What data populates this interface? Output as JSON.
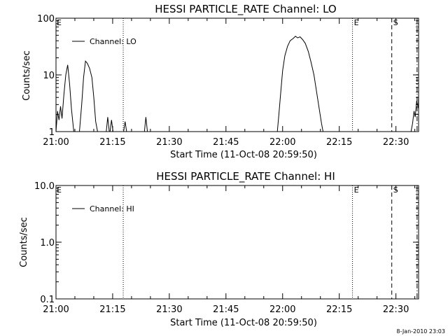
{
  "chart_data": [
    {
      "type": "line",
      "title": "HESSI PARTICLE_RATE Channel: LO",
      "xlabel": "Start Time (11-Oct-08 20:59:50)",
      "ylabel": "Counts/sec",
      "yscale": "log",
      "xlim": [
        "21:00",
        "22:36"
      ],
      "ylim": [
        1,
        100
      ],
      "x_tick_labels": [
        "21:00",
        "21:15",
        "21:30",
        "21:45",
        "22:00",
        "22:15",
        "22:30"
      ],
      "y_tick_labels": [
        "1",
        "10",
        "100"
      ],
      "legend": "top-left",
      "series": [
        {
          "name": "Channel: LO",
          "segments": [
            [
              [
                "21:00",
                1
              ],
              [
                "21:00.4",
                2.3
              ],
              [
                "21:00.8",
                1.6
              ],
              [
                "21:01.2",
                2.8
              ],
              [
                "21:01.6",
                1.7
              ],
              [
                "21:02.1",
                4.5
              ],
              [
                "21:02.6",
                10
              ],
              [
                "21:03.1",
                15
              ],
              [
                "21:03.6",
                7
              ],
              [
                "21:04.1",
                2.5
              ],
              [
                "21:04.7",
                1
              ]
            ],
            [
              [
                "21:06.2",
                1
              ],
              [
                "21:06.8",
                3
              ],
              [
                "21:07.3",
                9
              ],
              [
                "21:07.8",
                17.5
              ],
              [
                "21:08.3",
                16
              ],
              [
                "21:08.9",
                13
              ],
              [
                "21:09.5",
                9
              ],
              [
                "21:10.0",
                4
              ],
              [
                "21:10.5",
                1.5
              ],
              [
                "21:11.0",
                1
              ]
            ],
            [
              [
                "21:13.3",
                1
              ],
              [
                "21:13.7",
                1.8
              ],
              [
                "21:14.1",
                1
              ]
            ],
            [
              [
                "21:14.3",
                1
              ],
              [
                "21:14.7",
                1.6
              ],
              [
                "21:15.1",
                1
              ]
            ],
            [
              [
                "21:17.9",
                1
              ],
              [
                "21:18.3",
                1.5
              ],
              [
                "21:18.7",
                1
              ]
            ],
            [
              [
                "21:23.4",
                1
              ],
              [
                "21:23.8",
                1.8
              ],
              [
                "21:24.2",
                1
              ]
            ],
            [
              [
                "21:58.6",
                1
              ],
              [
                "21:59.0",
                2
              ],
              [
                "21:59.5",
                5
              ],
              [
                "22:00.0",
                12
              ],
              [
                "22:00.6",
                22
              ],
              [
                "22:01.3",
                32
              ],
              [
                "22:02.0",
                40
              ],
              [
                "22:02.8",
                44
              ],
              [
                "22:03.4",
                48
              ],
              [
                "22:04.0",
                45
              ],
              [
                "22:04.6",
                47
              ],
              [
                "22:05.3",
                42
              ],
              [
                "22:06.0",
                36
              ],
              [
                "22:06.8",
                26
              ],
              [
                "22:07.5",
                17
              ],
              [
                "22:08.3",
                10
              ],
              [
                "22:09.0",
                5
              ],
              [
                "22:09.7",
                2.5
              ],
              [
                "22:10.3",
                1.4
              ],
              [
                "22:10.7",
                1
              ]
            ],
            [
              [
                "22:34.0",
                1
              ],
              [
                "22:34.4",
                1.4
              ],
              [
                "22:34.8",
                2.3
              ],
              [
                "22:35.1",
                1.8
              ],
              [
                "22:35.5",
                3.5
              ],
              [
                "22:35.9",
                2.6
              ],
              [
                "22:36.0",
                4.5
              ]
            ]
          ]
        }
      ],
      "markers": [
        {
          "x": "21:17.8",
          "style": "dotted",
          "label": ""
        },
        {
          "x": "22:18.5",
          "style": "dotted",
          "label": "E"
        },
        {
          "x": "22:28.9",
          "style": "dashed",
          "label": "S"
        },
        {
          "x": "22:35.6",
          "style": "dash-dot",
          "label": ""
        }
      ],
      "edge_label": "E"
    },
    {
      "type": "line",
      "title": "HESSI PARTICLE_RATE Channel: HI",
      "xlabel": "Start Time (11-Oct-08 20:59:50)",
      "ylabel": "Counts/sec",
      "yscale": "log",
      "xlim": [
        "21:00",
        "22:36"
      ],
      "ylim": [
        0.1,
        10.0
      ],
      "x_tick_labels": [
        "21:00",
        "21:15",
        "21:30",
        "21:45",
        "22:00",
        "22:15",
        "22:30"
      ],
      "y_tick_labels": [
        "0.1",
        "1.0",
        "10.0"
      ],
      "legend": "top-left",
      "series": [
        {
          "name": "Channel: HI",
          "segments": []
        }
      ],
      "markers": [
        {
          "x": "21:17.8",
          "style": "dotted",
          "label": ""
        },
        {
          "x": "22:18.5",
          "style": "dotted",
          "label": "E"
        },
        {
          "x": "22:28.9",
          "style": "dashed",
          "label": "S"
        },
        {
          "x": "22:35.6",
          "style": "dash-dot",
          "label": ""
        }
      ],
      "edge_label": "E"
    }
  ],
  "footer_stamp": "8-Jan-2010 23:03"
}
